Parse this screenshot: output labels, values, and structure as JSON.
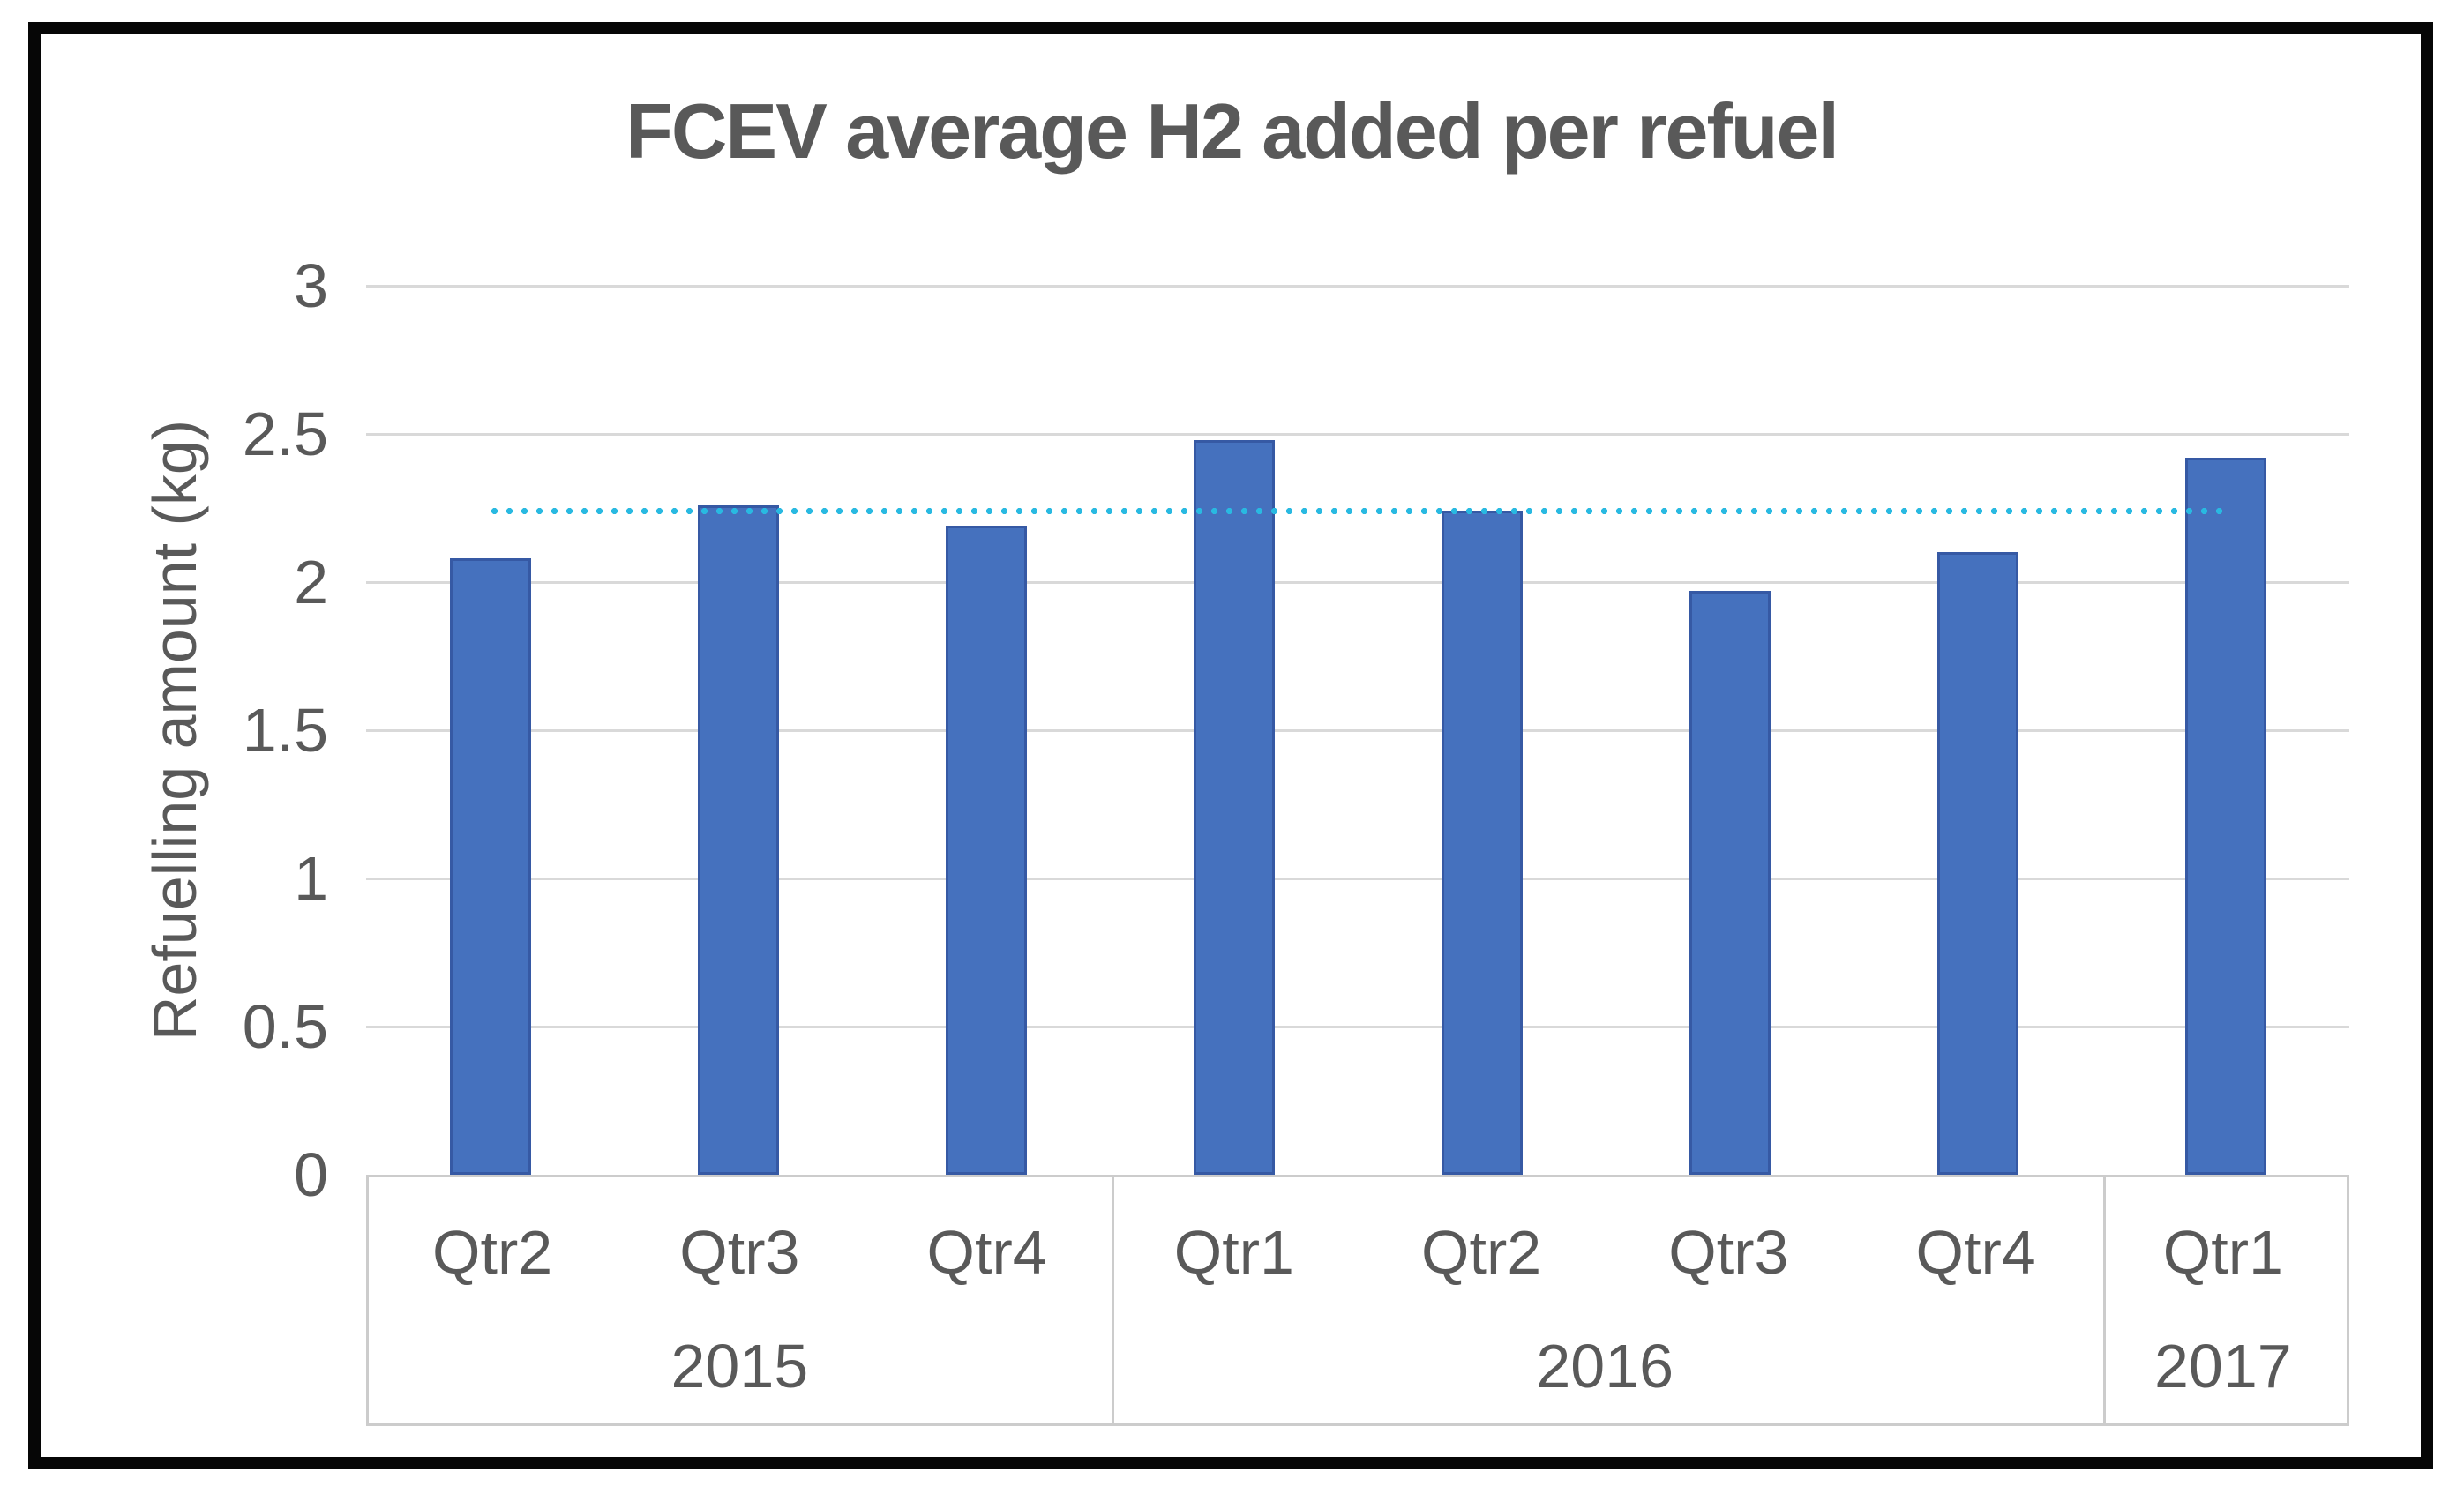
{
  "chart_data": {
    "type": "bar",
    "title": "FCEV average H2 added per refuel",
    "ylabel": "Refuelling amount (kg)",
    "xlabel": "",
    "ylim": [
      0,
      3
    ],
    "y_ticks": [
      "3",
      "2.5",
      "2",
      "1.5",
      "1",
      "0.5",
      "0"
    ],
    "grid": true,
    "legend_position": "none",
    "categories": [
      "Qtr2",
      "Qtr3",
      "Qtr4",
      "Qtr1",
      "Qtr2",
      "Qtr3",
      "Qtr4",
      "Qtr1"
    ],
    "year_groups": [
      {
        "label": "2015",
        "count": 3
      },
      {
        "label": "2016",
        "count": 4
      },
      {
        "label": "2017",
        "count": 1
      }
    ],
    "values": [
      2.08,
      2.26,
      2.19,
      2.48,
      2.24,
      1.97,
      2.1,
      2.42
    ],
    "average_line_value": 2.24,
    "bar_color": "#4571be",
    "bar_border_color": "#3659a4",
    "average_line_color": "#29b9e1",
    "gridline_color": "#d9d9d9",
    "axis_table_border_color": "#cccccc",
    "text_color": "#595959"
  }
}
